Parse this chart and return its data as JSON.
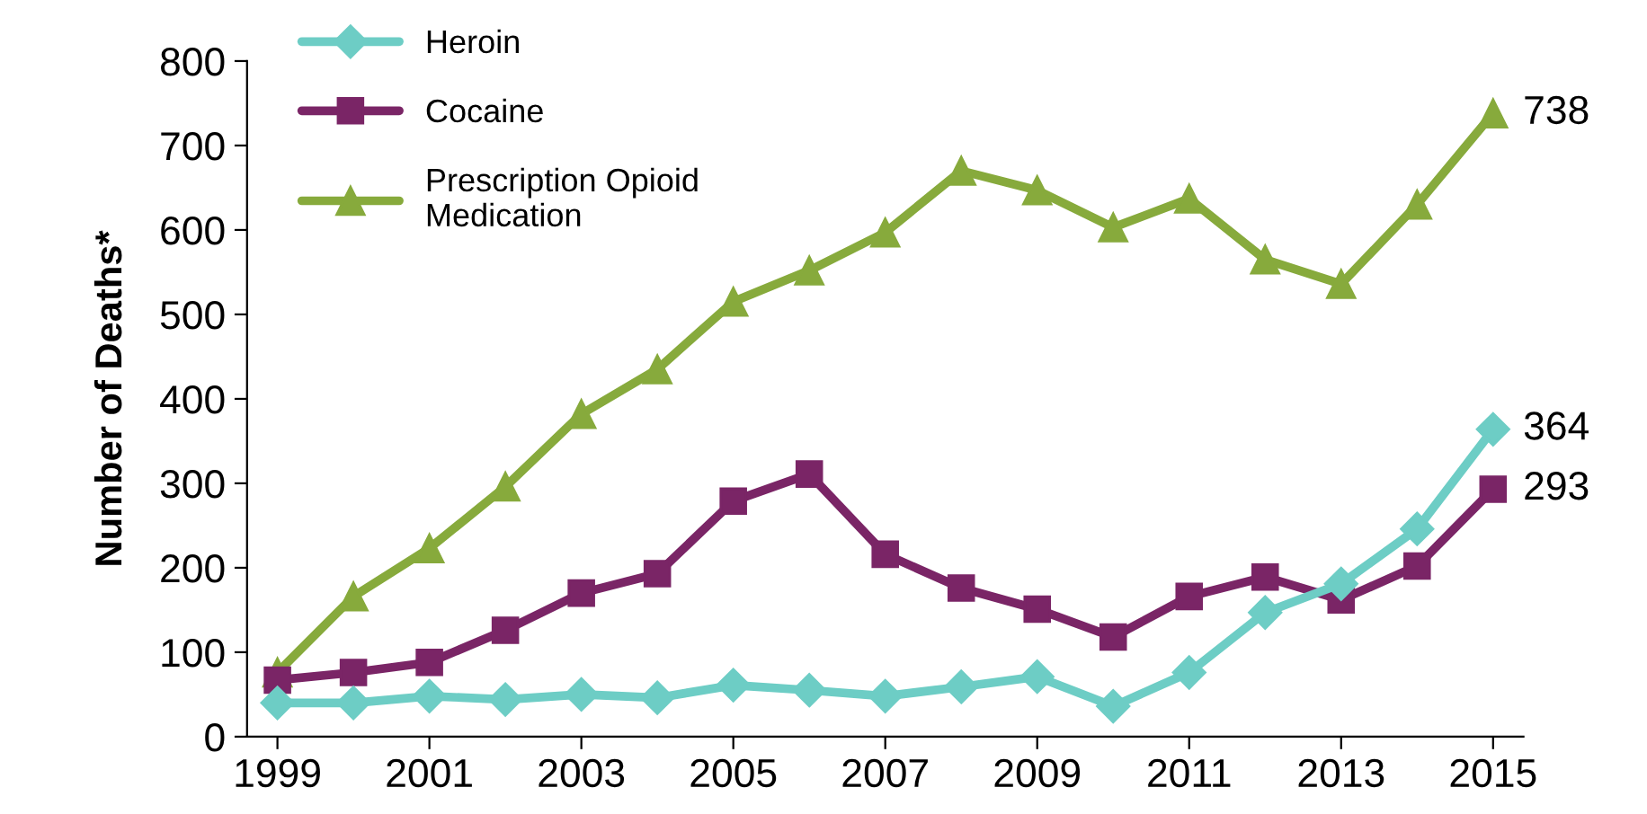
{
  "chart_data": {
    "type": "line",
    "ylabel": "Number of Deaths*",
    "x": [
      1999,
      2000,
      2001,
      2002,
      2003,
      2004,
      2005,
      2006,
      2007,
      2008,
      2009,
      2010,
      2011,
      2012,
      2013,
      2014,
      2015
    ],
    "series": [
      {
        "name": "Heroin",
        "color": "#6dcdc5",
        "marker": "diamond",
        "values": [
          40,
          40,
          48,
          44,
          50,
          46,
          61,
          55,
          48,
          59,
          71,
          36,
          76,
          147,
          181,
          246,
          364
        ],
        "value_labels": [
          null,
          null,
          null,
          null,
          null,
          null,
          null,
          null,
          null,
          null,
          null,
          null,
          null,
          null,
          null,
          null,
          "364"
        ]
      },
      {
        "name": "Cocaine",
        "color": "#7a2566",
        "marker": "square",
        "values": [
          67,
          76,
          88,
          126,
          170,
          193,
          279,
          311,
          216,
          176,
          151,
          118,
          166,
          189,
          162,
          202,
          293
        ],
        "value_labels": [
          null,
          null,
          null,
          null,
          null,
          null,
          null,
          null,
          null,
          null,
          null,
          null,
          null,
          null,
          null,
          null,
          "293"
        ]
      },
      {
        "name": "Prescription Opioid\nMedication",
        "color": "#87aa3c",
        "marker": "triangle",
        "values": [
          76,
          166,
          223,
          296,
          382,
          435,
          515,
          552,
          597,
          670,
          647,
          603,
          637,
          565,
          536,
          630,
          738
        ],
        "value_labels": [
          null,
          null,
          null,
          null,
          null,
          null,
          null,
          null,
          null,
          null,
          null,
          null,
          null,
          null,
          null,
          null,
          "738"
        ]
      }
    ],
    "xlim": [
      1998.6,
      2015.4
    ],
    "xticks": [
      1999,
      2001,
      2003,
      2005,
      2007,
      2009,
      2011,
      2013,
      2015
    ],
    "ylim": [
      0,
      800
    ],
    "yticks": [
      0,
      100,
      200,
      300,
      400,
      500,
      600,
      700,
      800
    ],
    "grid": false,
    "legend": "top left",
    "line_style": "solid"
  }
}
